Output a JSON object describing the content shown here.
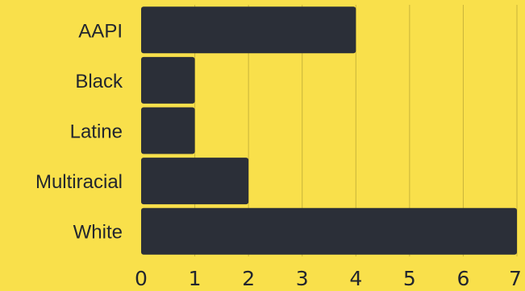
{
  "colors": {
    "background": "#f9e04b",
    "bar": "#2b2f38",
    "text": "#22262e",
    "grid": "#c9b43a"
  },
  "chart_data": {
    "type": "bar",
    "orientation": "horizontal",
    "categories": [
      "AAPI",
      "Black",
      "Latine",
      "Multiracial",
      "White"
    ],
    "values": [
      4,
      1,
      1,
      2,
      7
    ],
    "xlim": [
      0,
      7
    ],
    "xticks": [
      "0",
      "1",
      "2",
      "3",
      "4",
      "5",
      "6",
      "7"
    ],
    "grid": "vertical",
    "title": "",
    "xlabel": "",
    "ylabel": ""
  }
}
